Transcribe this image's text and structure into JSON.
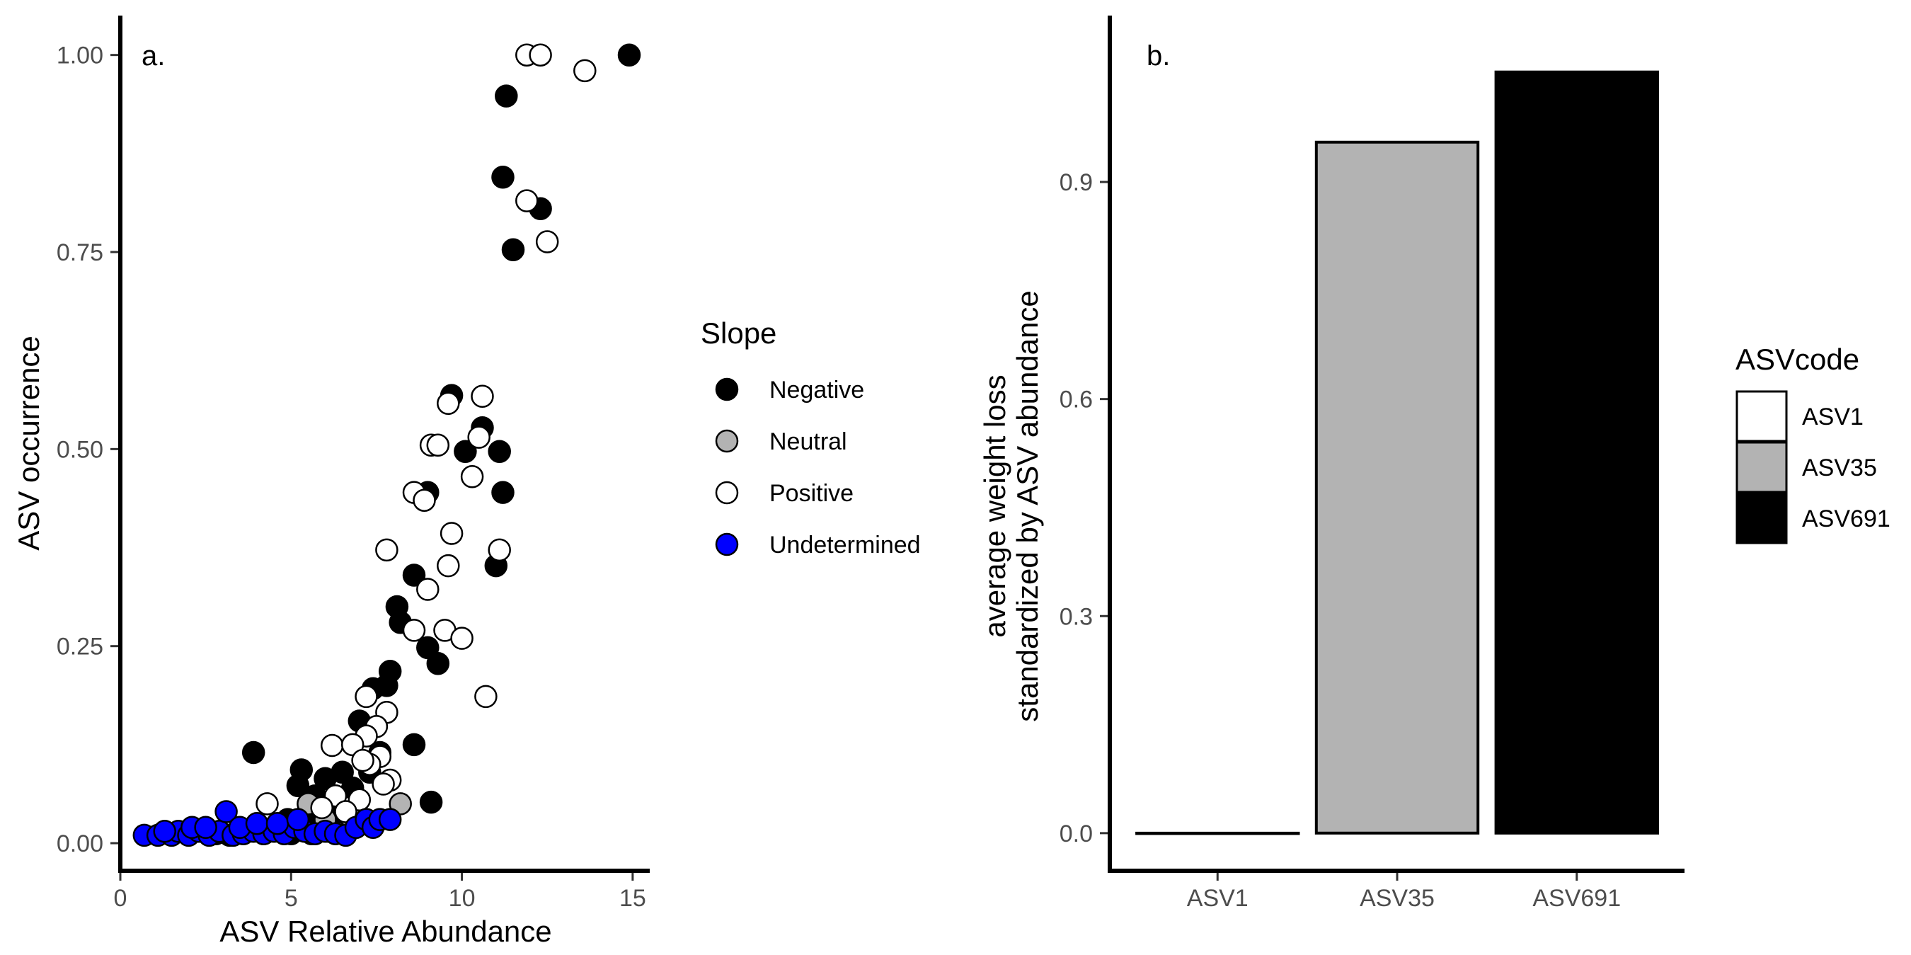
{
  "chart_data": [
    {
      "type": "scatter",
      "panel_label": "a.",
      "xlabel": "ASV Relative Abundance",
      "ylabel": "ASV occurrence",
      "xlim": [
        0,
        15.5
      ],
      "ylim": [
        -0.035,
        1.05
      ],
      "xticks": [
        "0",
        "5",
        "10",
        "15"
      ],
      "yticks": [
        "0.00",
        "0.25",
        "0.50",
        "0.75",
        "1.00"
      ],
      "grid": false,
      "legend_title": "Slope",
      "legend_position": "right",
      "colors": {
        "Negative": "#000000",
        "Neutral": "#b3b3b3",
        "Positive": "#ffffff",
        "Undetermined": "#0000ff"
      },
      "series": [
        {
          "name": "Negative",
          "points": [
            [
              14.9,
              1.0
            ],
            [
              11.3,
              0.948
            ],
            [
              11.2,
              0.845
            ],
            [
              12.3,
              0.805
            ],
            [
              11.5,
              0.753
            ],
            [
              9.7,
              0.568
            ],
            [
              10.6,
              0.527
            ],
            [
              10.1,
              0.497
            ],
            [
              11.1,
              0.497
            ],
            [
              9.0,
              0.445
            ],
            [
              11.2,
              0.445
            ],
            [
              11.0,
              0.352
            ],
            [
              8.6,
              0.34
            ],
            [
              8.1,
              0.3
            ],
            [
              8.2,
              0.28
            ],
            [
              7.9,
              0.218
            ],
            [
              7.8,
              0.2
            ],
            [
              9.0,
              0.248
            ],
            [
              9.3,
              0.228
            ],
            [
              7.4,
              0.196
            ],
            [
              7.0,
              0.155
            ],
            [
              8.6,
              0.125
            ],
            [
              3.9,
              0.115
            ],
            [
              7.6,
              0.115
            ],
            [
              5.3,
              0.093
            ],
            [
              6.5,
              0.09
            ],
            [
              6.0,
              0.082
            ],
            [
              5.2,
              0.073
            ],
            [
              7.3,
              0.09
            ],
            [
              6.8,
              0.07
            ],
            [
              5.7,
              0.06
            ],
            [
              9.1,
              0.052
            ],
            [
              6.0,
              0.05
            ],
            [
              5.5,
              0.04
            ],
            [
              4.9,
              0.03
            ],
            [
              4.5,
              0.02
            ],
            [
              5.8,
              0.025
            ],
            [
              6.2,
              0.035
            ],
            [
              5.0,
              0.012
            ],
            [
              4.2,
              0.012
            ],
            [
              3.6,
              0.015
            ],
            [
              3.2,
              0.01
            ],
            [
              2.8,
              0.012
            ],
            [
              5.6,
              0.012
            ],
            [
              6.1,
              0.015
            ]
          ]
        },
        {
          "name": "Neutral",
          "points": [
            [
              8.2,
              0.05
            ],
            [
              5.5,
              0.05
            ],
            [
              6.7,
              0.035
            ],
            [
              6.0,
              0.03
            ]
          ]
        },
        {
          "name": "Positive",
          "points": [
            [
              11.9,
              1.0
            ],
            [
              12.3,
              1.0
            ],
            [
              13.6,
              0.98
            ],
            [
              11.9,
              0.815
            ],
            [
              12.5,
              0.763
            ],
            [
              10.6,
              0.567
            ],
            [
              9.6,
              0.558
            ],
            [
              9.1,
              0.505
            ],
            [
              9.3,
              0.505
            ],
            [
              10.5,
              0.515
            ],
            [
              10.3,
              0.465
            ],
            [
              8.6,
              0.445
            ],
            [
              8.9,
              0.435
            ],
            [
              9.7,
              0.393
            ],
            [
              7.8,
              0.372
            ],
            [
              11.1,
              0.372
            ],
            [
              9.6,
              0.352
            ],
            [
              9.0,
              0.322
            ],
            [
              8.6,
              0.27
            ],
            [
              9.5,
              0.27
            ],
            [
              10.0,
              0.26
            ],
            [
              10.7,
              0.186
            ],
            [
              7.2,
              0.186
            ],
            [
              7.8,
              0.166
            ],
            [
              7.5,
              0.148
            ],
            [
              6.2,
              0.124
            ],
            [
              7.2,
              0.136
            ],
            [
              6.8,
              0.125
            ],
            [
              7.6,
              0.11
            ],
            [
              7.3,
              0.1
            ],
            [
              7.1,
              0.105
            ],
            [
              7.9,
              0.08
            ],
            [
              7.0,
              0.055
            ],
            [
              6.3,
              0.06
            ],
            [
              4.3,
              0.05
            ],
            [
              6.6,
              0.04
            ],
            [
              5.9,
              0.045
            ],
            [
              7.7,
              0.075
            ]
          ]
        },
        {
          "name": "Undetermined",
          "points": [
            [
              0.7,
              0.01
            ],
            [
              1.1,
              0.01
            ],
            [
              1.5,
              0.01
            ],
            [
              1.7,
              0.015
            ],
            [
              2.0,
              0.01
            ],
            [
              2.3,
              0.015
            ],
            [
              2.6,
              0.01
            ],
            [
              2.9,
              0.015
            ],
            [
              3.1,
              0.04
            ],
            [
              3.3,
              0.01
            ],
            [
              3.6,
              0.012
            ],
            [
              3.9,
              0.015
            ],
            [
              4.2,
              0.012
            ],
            [
              4.5,
              0.015
            ],
            [
              4.8,
              0.012
            ],
            [
              5.1,
              0.02
            ],
            [
              5.4,
              0.015
            ],
            [
              5.7,
              0.012
            ],
            [
              6.0,
              0.015
            ],
            [
              6.3,
              0.012
            ],
            [
              6.6,
              0.01
            ],
            [
              6.9,
              0.02
            ],
            [
              7.2,
              0.03
            ],
            [
              7.4,
              0.02
            ],
            [
              7.6,
              0.03
            ],
            [
              7.9,
              0.03
            ],
            [
              1.3,
              0.015
            ],
            [
              2.1,
              0.02
            ],
            [
              2.5,
              0.02
            ],
            [
              3.5,
              0.02
            ],
            [
              4.0,
              0.025
            ],
            [
              4.6,
              0.025
            ],
            [
              5.2,
              0.03
            ]
          ]
        }
      ]
    },
    {
      "type": "bar",
      "panel_label": "b.",
      "xlabel": "",
      "ylabel": [
        "average weight loss",
        "standardized by ASV abundance"
      ],
      "categories": [
        "ASV1",
        "ASV35",
        "ASV691"
      ],
      "values": [
        0.0,
        0.955,
        1.052
      ],
      "ylim": [
        -0.052,
        1.13
      ],
      "yticks": [
        "0.0",
        "0.3",
        "0.6",
        "0.9"
      ],
      "grid": false,
      "legend_title": "ASVcode",
      "legend_position": "right",
      "colors": {
        "ASV1": "#ffffff",
        "ASV35": "#b3b3b3",
        "ASV691": "#000000"
      }
    }
  ]
}
